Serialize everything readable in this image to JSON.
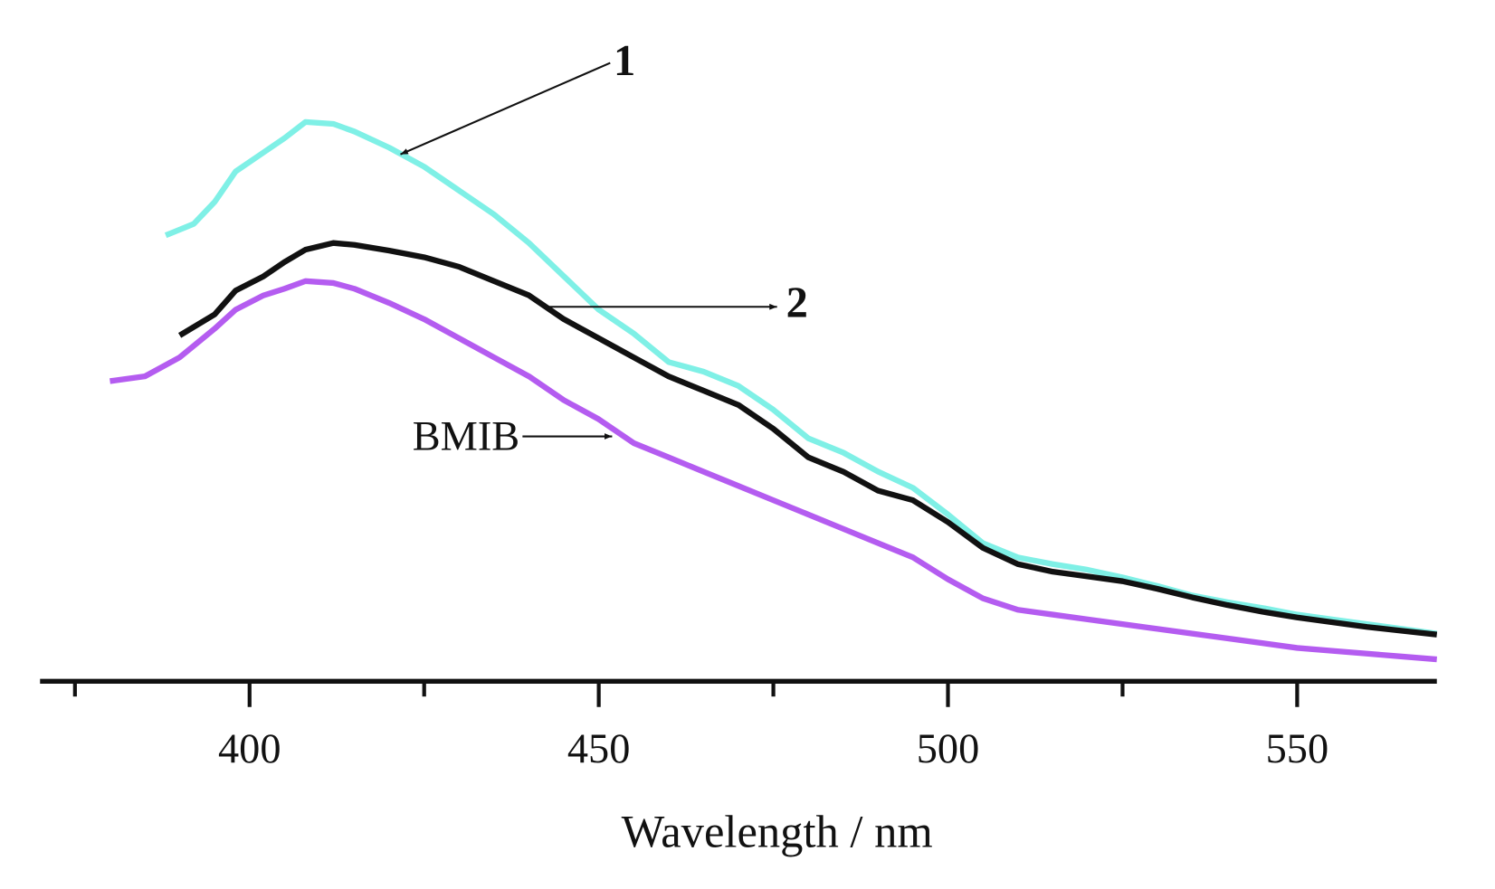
{
  "chart_data": {
    "type": "line",
    "xlabel": "Wavelength / nm",
    "xlim": [
      370,
      570
    ],
    "xticks": [
      400,
      450,
      500,
      550
    ],
    "xminorticks": [
      375,
      425,
      475,
      525
    ],
    "ylim": [
      0,
      70
    ],
    "series": [
      {
        "name": "1",
        "color": "#7ff0e6",
        "x": [
          388,
          392,
          395,
          398,
          402,
          405,
          408,
          412,
          415,
          420,
          425,
          430,
          435,
          440,
          445,
          450,
          455,
          460,
          465,
          470,
          475,
          480,
          485,
          490,
          495,
          500,
          505,
          510,
          515,
          520,
          525,
          530,
          535,
          540,
          545,
          550,
          555,
          560,
          565,
          570
        ],
        "values": [
          46.8,
          48.0,
          50.3,
          53.5,
          55.5,
          57.0,
          58.7,
          58.5,
          57.7,
          56.0,
          54.0,
          51.5,
          49.0,
          46.0,
          42.5,
          39.0,
          36.5,
          33.5,
          32.5,
          31.0,
          28.5,
          25.5,
          24.0,
          22.0,
          20.3,
          17.5,
          14.5,
          13.0,
          12.3,
          11.7,
          10.9,
          10.0,
          9.0,
          8.3,
          7.7,
          7.0,
          6.5,
          6.0,
          5.5,
          5.0
        ]
      },
      {
        "name": "2",
        "color": "#111111",
        "x": [
          390,
          395,
          398,
          402,
          405,
          408,
          412,
          415,
          420,
          425,
          430,
          435,
          440,
          445,
          450,
          455,
          460,
          465,
          470,
          475,
          480,
          485,
          490,
          495,
          500,
          505,
          510,
          515,
          520,
          525,
          530,
          535,
          540,
          545,
          550,
          555,
          560,
          565,
          570
        ],
        "values": [
          36.3,
          38.5,
          41.0,
          42.5,
          44.0,
          45.3,
          46.0,
          45.8,
          45.2,
          44.5,
          43.5,
          42.0,
          40.5,
          38.0,
          36.0,
          34.0,
          32.0,
          30.5,
          29.0,
          26.5,
          23.5,
          22.0,
          20.0,
          19.0,
          16.7,
          14.0,
          12.3,
          11.5,
          11.0,
          10.5,
          9.7,
          8.8,
          8.0,
          7.3,
          6.7,
          6.2,
          5.7,
          5.3,
          4.9
        ]
      },
      {
        "name": "BMIB",
        "color": "#b45cf0",
        "x": [
          380,
          385,
          390,
          395,
          398,
          402,
          405,
          408,
          412,
          415,
          420,
          425,
          430,
          435,
          440,
          445,
          450,
          455,
          460,
          465,
          470,
          475,
          480,
          485,
          490,
          495,
          500,
          505,
          510,
          515,
          520,
          525,
          530,
          535,
          540,
          545,
          550,
          555,
          560,
          565,
          570
        ],
        "values": [
          31.5,
          32.0,
          34.0,
          37.0,
          39.0,
          40.5,
          41.2,
          42.0,
          41.8,
          41.2,
          39.7,
          38.0,
          36.0,
          34.0,
          32.0,
          29.5,
          27.5,
          25.0,
          23.5,
          22.0,
          20.5,
          19.0,
          17.5,
          16.0,
          14.5,
          13.0,
          10.7,
          8.7,
          7.5,
          7.0,
          6.5,
          6.0,
          5.5,
          5.0,
          4.5,
          4.0,
          3.5,
          3.2,
          2.9,
          2.6,
          2.3
        ]
      }
    ]
  }
}
